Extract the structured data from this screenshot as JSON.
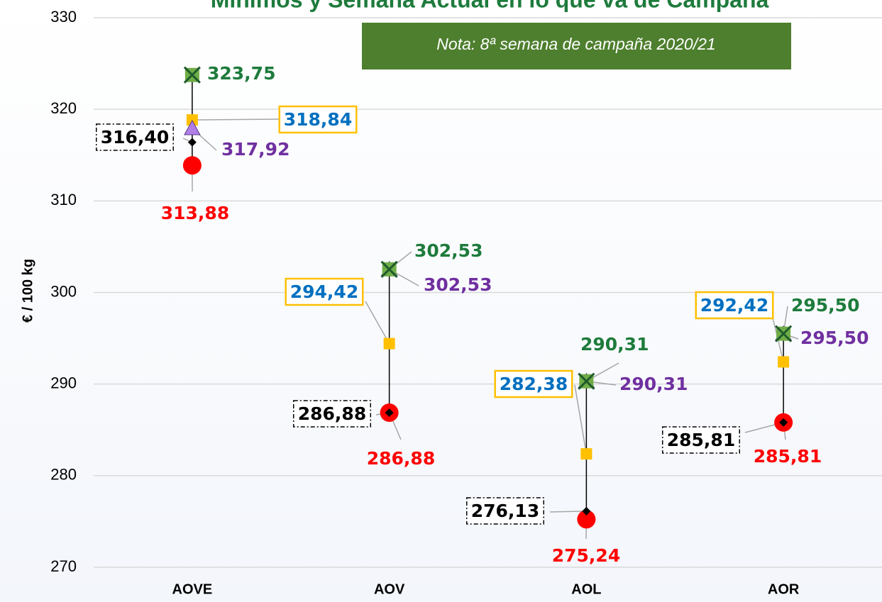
{
  "chart_data": {
    "type": "dot",
    "title": "Mínimos y Semana Actual en lo que va de Campaña",
    "note": "Nota: 8ª semana de campaña 2020/21",
    "y_label": "€ / 100 kg",
    "categories": [
      "AOVE",
      "AOV",
      "AOL",
      "AOR"
    ],
    "ylim": [
      270,
      330
    ],
    "yticks": [
      270,
      280,
      290,
      300,
      310,
      320,
      330
    ],
    "grid": true,
    "series": [
      {
        "marker": "x-square",
        "color": "#70ad47",
        "label_color": "#1e7b3c",
        "values": [
          323.75,
          302.53,
          290.31,
          295.5
        ],
        "value_labels": [
          "323,75",
          "302,53",
          "290,31",
          "295,50"
        ]
      },
      {
        "marker": "triangle",
        "color": "#b07ee6",
        "label_color": "#7030a0",
        "values": [
          317.92,
          302.53,
          290.31,
          295.5
        ],
        "value_labels": [
          "317,92",
          "302,53",
          "290,31",
          "295,50"
        ]
      },
      {
        "marker": "square",
        "color": "#ffc000",
        "label_color": "#0070c0",
        "values": [
          318.84,
          294.42,
          282.38,
          292.42
        ],
        "value_labels": [
          "318,84",
          "294,42",
          "282,38",
          "292,42"
        ]
      },
      {
        "marker": "diamond",
        "color": "#000000",
        "label_color": "#000000",
        "values": [
          316.4,
          286.88,
          276.13,
          285.81
        ],
        "value_labels": [
          "316,40",
          "286,88",
          "276,13",
          "285,81"
        ]
      },
      {
        "marker": "circle",
        "color": "#ff0000",
        "label_color": "#ff0000",
        "values": [
          313.88,
          286.88,
          275.24,
          285.81
        ],
        "value_labels": [
          "313,88",
          "286,88",
          "275,24",
          "285,81"
        ]
      }
    ]
  }
}
